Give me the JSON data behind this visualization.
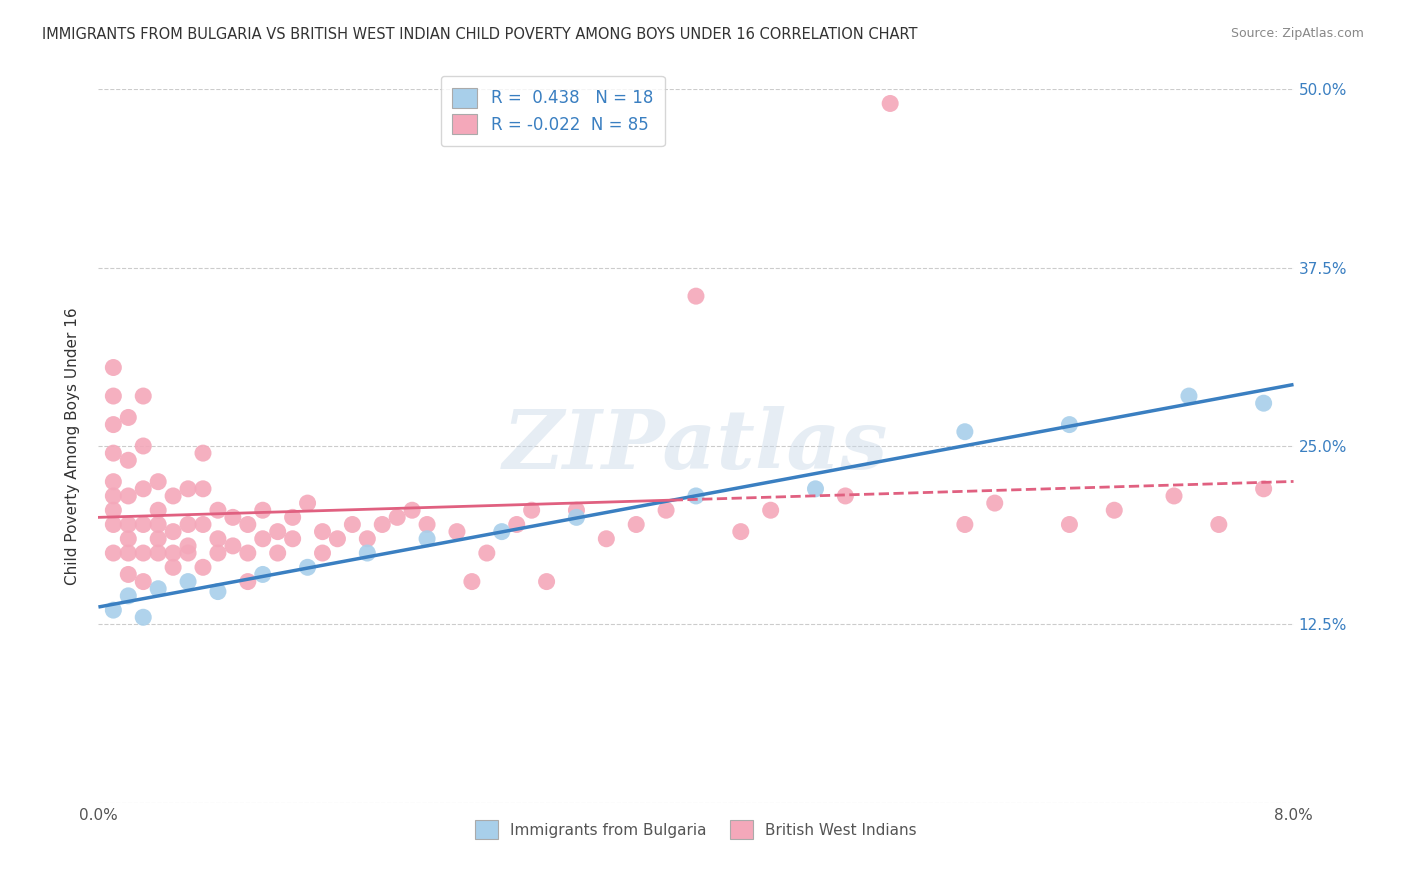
{
  "title": "IMMIGRANTS FROM BULGARIA VS BRITISH WEST INDIAN CHILD POVERTY AMONG BOYS UNDER 16 CORRELATION CHART",
  "source": "Source: ZipAtlas.com",
  "ylabel": "Child Poverty Among Boys Under 16",
  "xlim": [
    0.0,
    0.08
  ],
  "ylim": [
    0.0,
    0.5
  ],
  "xticks": [
    0.0,
    0.02,
    0.04,
    0.06,
    0.08
  ],
  "xticklabels": [
    "0.0%",
    "",
    "",
    "",
    "8.0%"
  ],
  "yticks": [
    0.0,
    0.125,
    0.25,
    0.375,
    0.5
  ],
  "yticklabels_left": [
    "",
    "",
    "",
    "",
    ""
  ],
  "yticklabels_right": [
    "",
    "12.5%",
    "25.0%",
    "37.5%",
    "50.0%"
  ],
  "r_bulgaria": 0.438,
  "n_bulgaria": 18,
  "r_bwi": -0.022,
  "n_bwi": 85,
  "legend_label_bulgaria": "Immigrants from Bulgaria",
  "legend_label_bwi": "British West Indians",
  "watermark": "ZIPatlas",
  "color_bulgaria": "#A8CFEA",
  "color_bwi": "#F4A8BA",
  "line_bulgaria": "#3A7FC1",
  "line_bwi": "#E06080",
  "background": "#FFFFFF",
  "grid_color": "#CCCCCC",
  "blue_x": [
    0.001,
    0.002,
    0.003,
    0.004,
    0.006,
    0.008,
    0.011,
    0.014,
    0.018,
    0.022,
    0.027,
    0.032,
    0.04,
    0.048,
    0.058,
    0.065,
    0.073,
    0.078
  ],
  "blue_y": [
    0.135,
    0.145,
    0.13,
    0.15,
    0.155,
    0.148,
    0.16,
    0.165,
    0.175,
    0.185,
    0.19,
    0.2,
    0.215,
    0.22,
    0.26,
    0.265,
    0.285,
    0.28
  ],
  "pink_x": [
    0.001,
    0.001,
    0.001,
    0.001,
    0.001,
    0.001,
    0.001,
    0.001,
    0.001,
    0.002,
    0.002,
    0.002,
    0.002,
    0.002,
    0.002,
    0.002,
    0.003,
    0.003,
    0.003,
    0.003,
    0.003,
    0.003,
    0.004,
    0.004,
    0.004,
    0.004,
    0.004,
    0.005,
    0.005,
    0.005,
    0.005,
    0.006,
    0.006,
    0.006,
    0.006,
    0.007,
    0.007,
    0.007,
    0.007,
    0.008,
    0.008,
    0.008,
    0.009,
    0.009,
    0.01,
    0.01,
    0.01,
    0.011,
    0.011,
    0.012,
    0.012,
    0.013,
    0.013,
    0.014,
    0.015,
    0.015,
    0.016,
    0.017,
    0.018,
    0.019,
    0.02,
    0.021,
    0.022,
    0.024,
    0.025,
    0.026,
    0.028,
    0.029,
    0.03,
    0.032,
    0.034,
    0.036,
    0.038,
    0.04,
    0.043,
    0.045,
    0.05,
    0.053,
    0.058,
    0.06,
    0.065,
    0.068,
    0.072,
    0.075,
    0.078
  ],
  "pink_y": [
    0.215,
    0.225,
    0.245,
    0.265,
    0.285,
    0.305,
    0.195,
    0.175,
    0.205,
    0.185,
    0.215,
    0.24,
    0.27,
    0.175,
    0.195,
    0.16,
    0.195,
    0.22,
    0.25,
    0.285,
    0.155,
    0.175,
    0.185,
    0.205,
    0.225,
    0.175,
    0.195,
    0.165,
    0.19,
    0.215,
    0.175,
    0.18,
    0.195,
    0.22,
    0.175,
    0.165,
    0.195,
    0.22,
    0.245,
    0.185,
    0.205,
    0.175,
    0.18,
    0.2,
    0.195,
    0.175,
    0.155,
    0.185,
    0.205,
    0.19,
    0.175,
    0.185,
    0.2,
    0.21,
    0.19,
    0.175,
    0.185,
    0.195,
    0.185,
    0.195,
    0.2,
    0.205,
    0.195,
    0.19,
    0.155,
    0.175,
    0.195,
    0.205,
    0.155,
    0.205,
    0.185,
    0.195,
    0.205,
    0.355,
    0.19,
    0.205,
    0.215,
    0.49,
    0.195,
    0.21,
    0.195,
    0.205,
    0.215,
    0.195,
    0.22
  ]
}
